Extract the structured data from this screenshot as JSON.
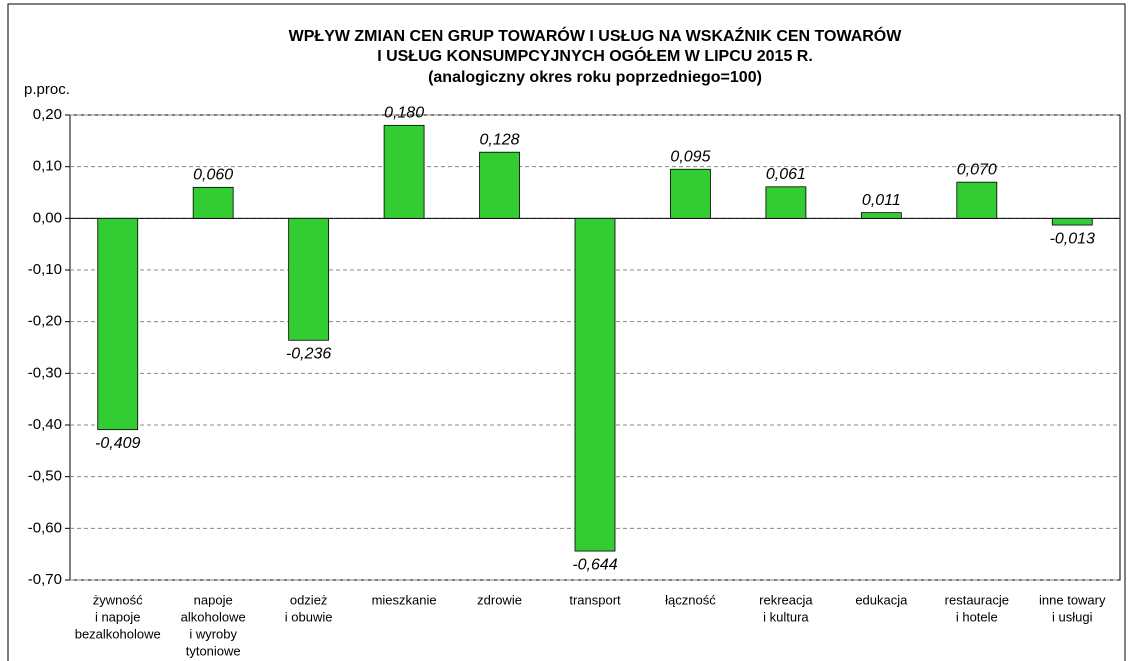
{
  "chart_data": {
    "type": "bar",
    "title": [
      "WPŁYW ZMIAN CEN GRUP TOWARÓW I USŁUG NA WSKAŹNIK CEN TOWARÓW",
      "I USŁUG KONSUMPCYJNYCH OGÓŁEM W LIPCU 2015 R."
    ],
    "subtitle": "(analogiczny okres roku poprzedniego=100)",
    "y_label": "p.proc.",
    "categories": [
      [
        "żywność",
        "i napoje",
        "bezalkoholowe"
      ],
      [
        "napoje",
        "alkoholowe",
        "i wyroby",
        "tytoniowe"
      ],
      [
        "odzież",
        "i obuwie"
      ],
      [
        "mieszkanie"
      ],
      [
        "zdrowie"
      ],
      [
        "transport"
      ],
      [
        "łączność"
      ],
      [
        "rekreacja",
        "i kultura"
      ],
      [
        "edukacja"
      ],
      [
        "restauracje",
        "i hotele"
      ],
      [
        "inne towary",
        "i usługi"
      ]
    ],
    "values": [
      -0.409,
      0.06,
      -0.236,
      0.18,
      0.128,
      -0.644,
      0.095,
      0.061,
      0.011,
      0.07,
      -0.013
    ],
    "value_labels": [
      "-0,409",
      "0,060",
      "-0,236",
      "0,180",
      "0,128",
      "-0,644",
      "0,095",
      "0,061",
      "0,011",
      "0,070",
      "-0,013"
    ],
    "color": "#33cc33",
    "ylim": [
      -0.7,
      0.2
    ],
    "yticks": [
      {
        "value": 0.2,
        "label": "0,20"
      },
      {
        "value": 0.1,
        "label": "0,10"
      },
      {
        "value": 0,
        "label": "0,00"
      },
      {
        "value": -0.1,
        "label": "-0,10"
      },
      {
        "value": -0.2,
        "label": "-0,20"
      },
      {
        "value": -0.3,
        "label": "-0,30"
      },
      {
        "value": -0.4,
        "label": "-0,40"
      },
      {
        "value": -0.5,
        "label": "-0,50"
      },
      {
        "value": -0.6,
        "label": "-0,60"
      },
      {
        "value": -0.7,
        "label": "-0,70"
      }
    ],
    "grid": true
  }
}
